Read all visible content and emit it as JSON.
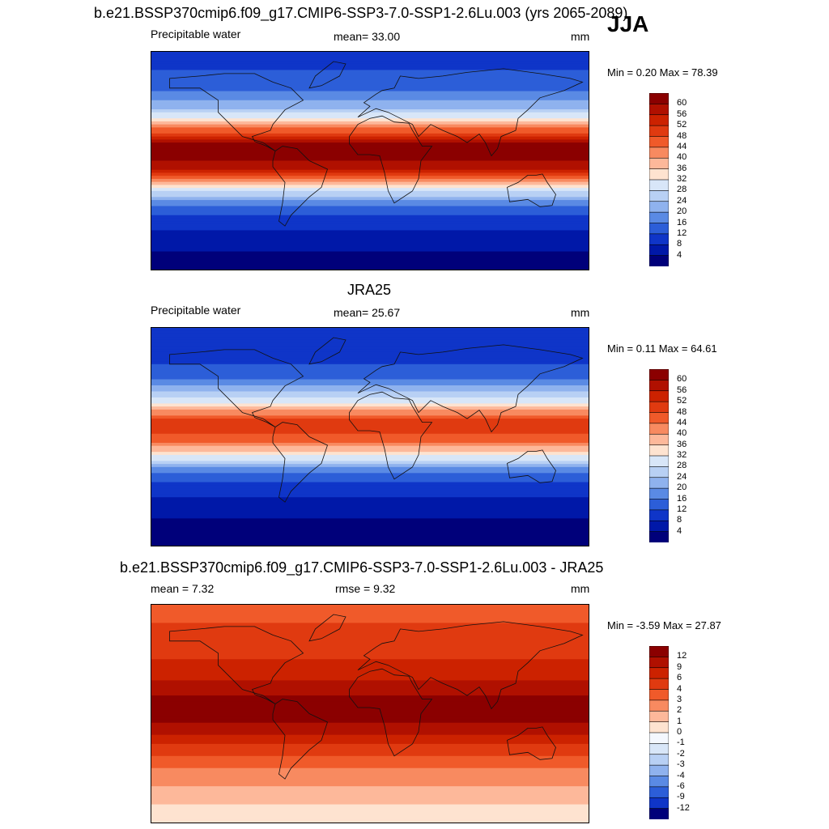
{
  "season": "JJA",
  "panels": [
    {
      "id": "model",
      "title": "b.e21.BSSP370cmip6.f09_g17.CMIP6-SSP3-7.0-SSP1-2.6Lu.003 (yrs 2065-2089)",
      "left_label": "Precipitable water",
      "center_label": "mean=  33.00",
      "units": "mm",
      "minmax": "Min =   0.20 Max =  78.39",
      "colorbar_labels": [
        "60",
        "56",
        "52",
        "48",
        "44",
        "40",
        "36",
        "32",
        "28",
        "24",
        "20",
        "16",
        "12",
        "8",
        "4"
      ]
    },
    {
      "id": "obs",
      "title": "JRA25",
      "left_label": "Precipitable water",
      "center_label": "mean=  25.67",
      "units": "mm",
      "minmax": "Min =   0.11 Max =  64.61",
      "colorbar_labels": [
        "60",
        "56",
        "52",
        "48",
        "44",
        "40",
        "36",
        "32",
        "28",
        "24",
        "20",
        "16",
        "12",
        "8",
        "4"
      ]
    },
    {
      "id": "diff",
      "title": "b.e21.BSSP370cmip6.f09_g17.CMIP6-SSP3-7.0-SSP1-2.6Lu.003 - JRA25",
      "left_label": "mean =   7.32",
      "center_label": "rmse =   9.32",
      "units": "mm",
      "minmax": "Min =  -3.59 Max =  27.87",
      "colorbar_labels": [
        "12",
        "9",
        "6",
        "4",
        "3",
        "2",
        "1",
        "0",
        "-1",
        "-2",
        "-3",
        "-4",
        "-6",
        "-9",
        "-12"
      ]
    }
  ],
  "colors": {
    "abs_scale": [
      "#8b0000",
      "#b01000",
      "#cc2200",
      "#e03a10",
      "#f05a2a",
      "#f88a60",
      "#fdb89a",
      "#fee3d0",
      "#d8e6f8",
      "#b8d0f4",
      "#8fb2ee",
      "#5a8ae4",
      "#2c5ed8",
      "#0f35c8",
      "#0018a8",
      "#00007a"
    ],
    "diff_scale": [
      "#8b0000",
      "#b01000",
      "#cc2200",
      "#e03a10",
      "#f05a2a",
      "#f88a60",
      "#fdb89a",
      "#fee3d0",
      "#f4f8ff",
      "#d8e6f8",
      "#b8d0f4",
      "#8fb2ee",
      "#5a8ae4",
      "#2c5ed8",
      "#0f35c8",
      "#00007a"
    ]
  },
  "chart_data": [
    {
      "type": "heatmap",
      "title": "b.e21.BSSP370cmip6.f09_g17.CMIP6-SSP3-7.0-SSP1-2.6Lu.003 (yrs 2065-2089)",
      "variable": "Precipitable water",
      "units": "mm",
      "mean": 33.0,
      "min": 0.2,
      "max": 78.39,
      "levels": [
        4,
        8,
        12,
        16,
        20,
        24,
        28,
        32,
        36,
        40,
        44,
        48,
        52,
        56,
        60
      ],
      "zonal_profile_lat": [
        90,
        75,
        60,
        45,
        35,
        25,
        15,
        5,
        -5,
        -15,
        -25,
        -35,
        -45,
        -60,
        -75,
        -90
      ],
      "zonal_profile_value": [
        10,
        12,
        15,
        22,
        32,
        46,
        60,
        62,
        58,
        44,
        28,
        18,
        12,
        7,
        4,
        2
      ]
    },
    {
      "type": "heatmap",
      "title": "JRA25",
      "variable": "Precipitable water",
      "units": "mm",
      "mean": 25.67,
      "min": 0.11,
      "max": 64.61,
      "levels": [
        4,
        8,
        12,
        16,
        20,
        24,
        28,
        32,
        36,
        40,
        44,
        48,
        52,
        56,
        60
      ],
      "zonal_profile_lat": [
        90,
        75,
        60,
        45,
        35,
        25,
        15,
        5,
        -5,
        -15,
        -25,
        -35,
        -45,
        -60,
        -75,
        -90
      ],
      "zonal_profile_value": [
        8,
        9,
        12,
        17,
        25,
        36,
        48,
        50,
        44,
        33,
        20,
        13,
        9,
        5,
        3,
        1
      ]
    },
    {
      "type": "heatmap",
      "title": "b.e21.BSSP370cmip6.f09_g17.CMIP6-SSP3-7.0-SSP1-2.6Lu.003 - JRA25",
      "units": "mm",
      "mean": 7.32,
      "rmse": 9.32,
      "min": -3.59,
      "max": 27.87,
      "levels": [
        -12,
        -9,
        -6,
        -4,
        -3,
        -2,
        -1,
        0,
        1,
        2,
        3,
        4,
        6,
        9,
        12
      ],
      "zonal_profile_lat": [
        90,
        75,
        60,
        45,
        35,
        25,
        15,
        5,
        -5,
        -15,
        -25,
        -35,
        -45,
        -60,
        -75,
        -90
      ],
      "zonal_profile_value": [
        3,
        4,
        4,
        6,
        7,
        10,
        12,
        12,
        13,
        10,
        6,
        4,
        3,
        2,
        1,
        0.5
      ]
    }
  ]
}
